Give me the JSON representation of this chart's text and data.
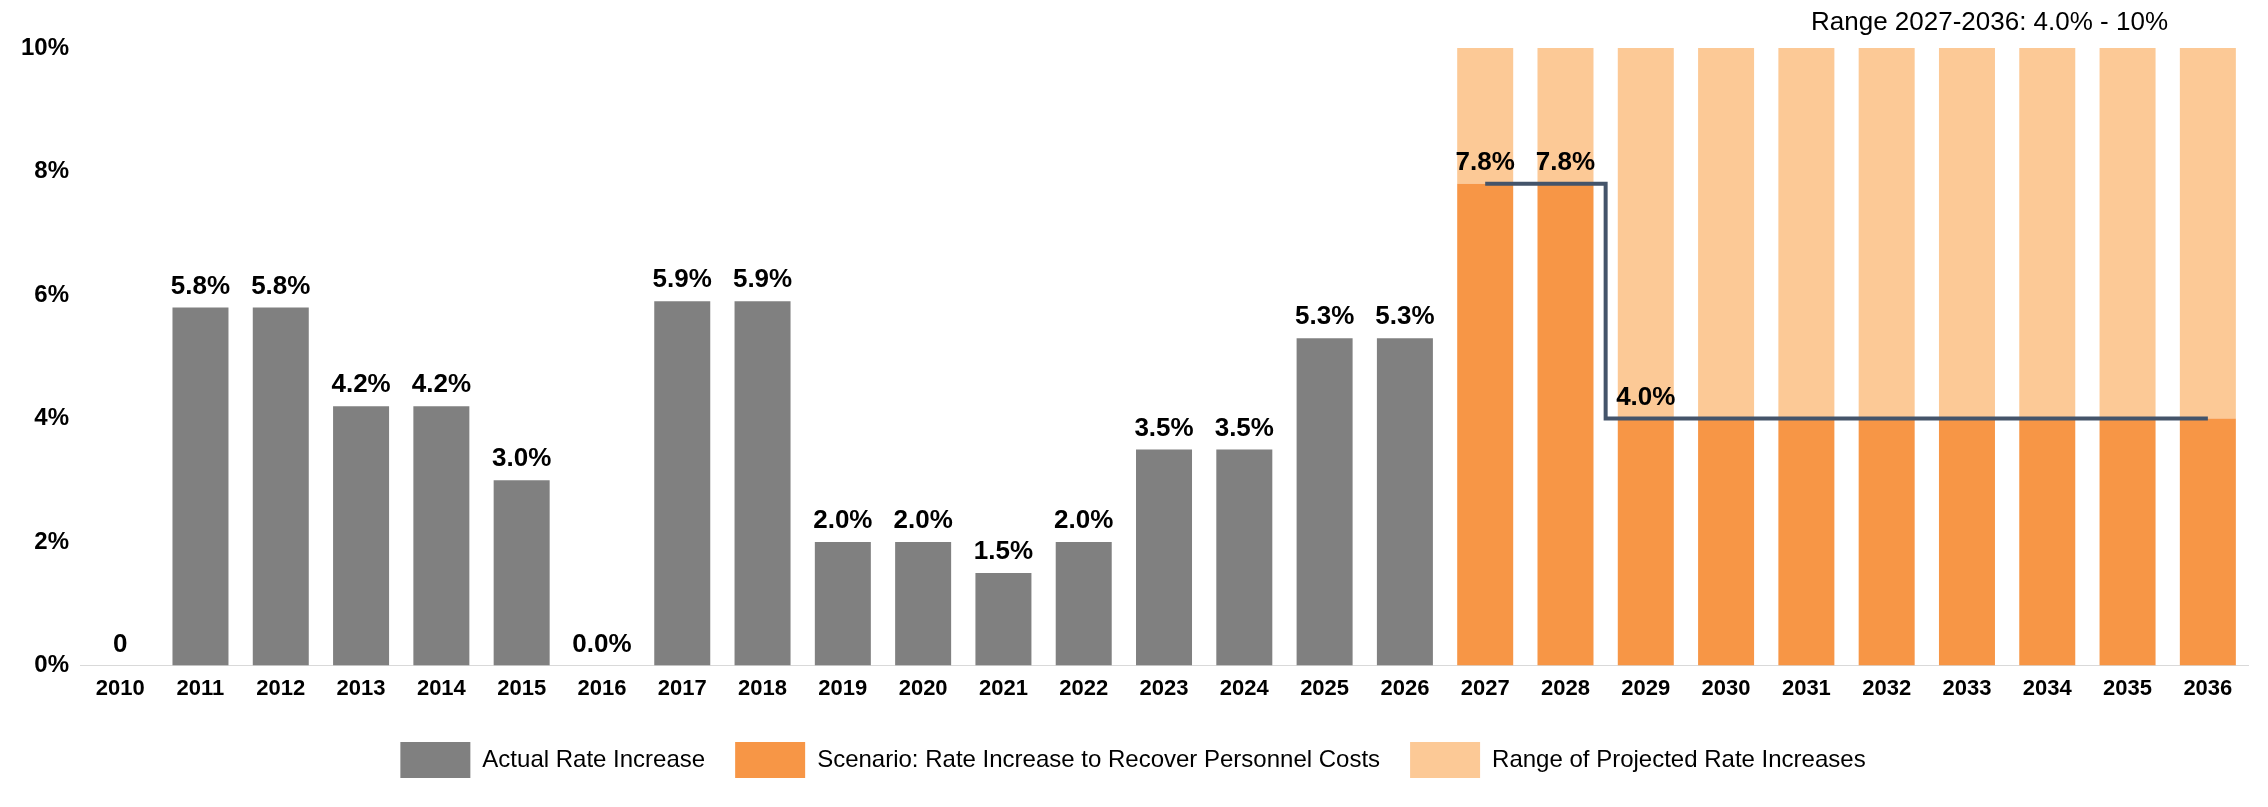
{
  "chart_data": {
    "type": "bar",
    "stacked": true,
    "categories": [
      "2010",
      "2011",
      "2012",
      "2013",
      "2014",
      "2015",
      "2016",
      "2017",
      "2018",
      "2019",
      "2020",
      "2021",
      "2022",
      "2023",
      "2024",
      "2025",
      "2026",
      "2027",
      "2028",
      "2029",
      "2030",
      "2031",
      "2032",
      "2033",
      "2034",
      "2035",
      "2036"
    ],
    "series": [
      {
        "name": "Actual Rate Increase",
        "color": "#808080",
        "values": [
          0,
          5.8,
          5.8,
          4.2,
          4.2,
          3.0,
          0.0,
          5.9,
          5.9,
          2.0,
          2.0,
          1.5,
          2.0,
          3.5,
          3.5,
          5.3,
          5.3,
          null,
          null,
          null,
          null,
          null,
          null,
          null,
          null,
          null,
          null
        ],
        "value_labels": [
          "0",
          "5.8%",
          "5.8%",
          "4.2%",
          "4.2%",
          "3.0%",
          "0.0%",
          "5.9%",
          "5.9%",
          "2.0%",
          "2.0%",
          "1.5%",
          "2.0%",
          "3.5%",
          "3.5%",
          "5.3%",
          "5.3%",
          null,
          null,
          null,
          null,
          null,
          null,
          null,
          null,
          null,
          null
        ]
      },
      {
        "name": "Scenario: Rate Increase to Recover Personnel Costs",
        "color": "#f79646",
        "values": [
          null,
          null,
          null,
          null,
          null,
          null,
          null,
          null,
          null,
          null,
          null,
          null,
          null,
          null,
          null,
          null,
          null,
          7.8,
          7.8,
          4.0,
          4.0,
          4.0,
          4.0,
          4.0,
          4.0,
          4.0,
          4.0
        ],
        "value_labels": [
          null,
          null,
          null,
          null,
          null,
          null,
          null,
          null,
          null,
          null,
          null,
          null,
          null,
          null,
          null,
          null,
          null,
          "7.8%",
          "7.8%",
          "4.0%",
          null,
          null,
          null,
          null,
          null,
          null,
          null
        ]
      },
      {
        "name": "Range of Projected Rate Increases",
        "color": "#fcc996",
        "values": [
          null,
          null,
          null,
          null,
          null,
          null,
          null,
          null,
          null,
          null,
          null,
          null,
          null,
          null,
          null,
          null,
          null,
          2.2,
          2.2,
          6.0,
          6.0,
          6.0,
          6.0,
          6.0,
          6.0,
          6.0,
          6.0
        ]
      },
      {
        "type": "step",
        "color": "#44546a",
        "values": [
          null,
          null,
          null,
          null,
          null,
          null,
          null,
          null,
          null,
          null,
          null,
          null,
          null,
          null,
          null,
          null,
          null,
          7.8,
          7.8,
          4.0,
          4.0,
          4.0,
          4.0,
          4.0,
          4.0,
          4.0,
          4.0
        ]
      }
    ],
    "ylim": [
      0,
      10
    ],
    "yticks": [
      {
        "value": 0,
        "label": "0%"
      },
      {
        "value": 2,
        "label": "2%"
      },
      {
        "value": 4,
        "label": "4%"
      },
      {
        "value": 6,
        "label": "6%"
      },
      {
        "value": 8,
        "label": "8%"
      },
      {
        "value": 10,
        "label": "10%"
      }
    ],
    "grid": false,
    "legend": "bottom",
    "annotations": [
      "Range 2027-2036: 4.0% - 10%"
    ]
  }
}
